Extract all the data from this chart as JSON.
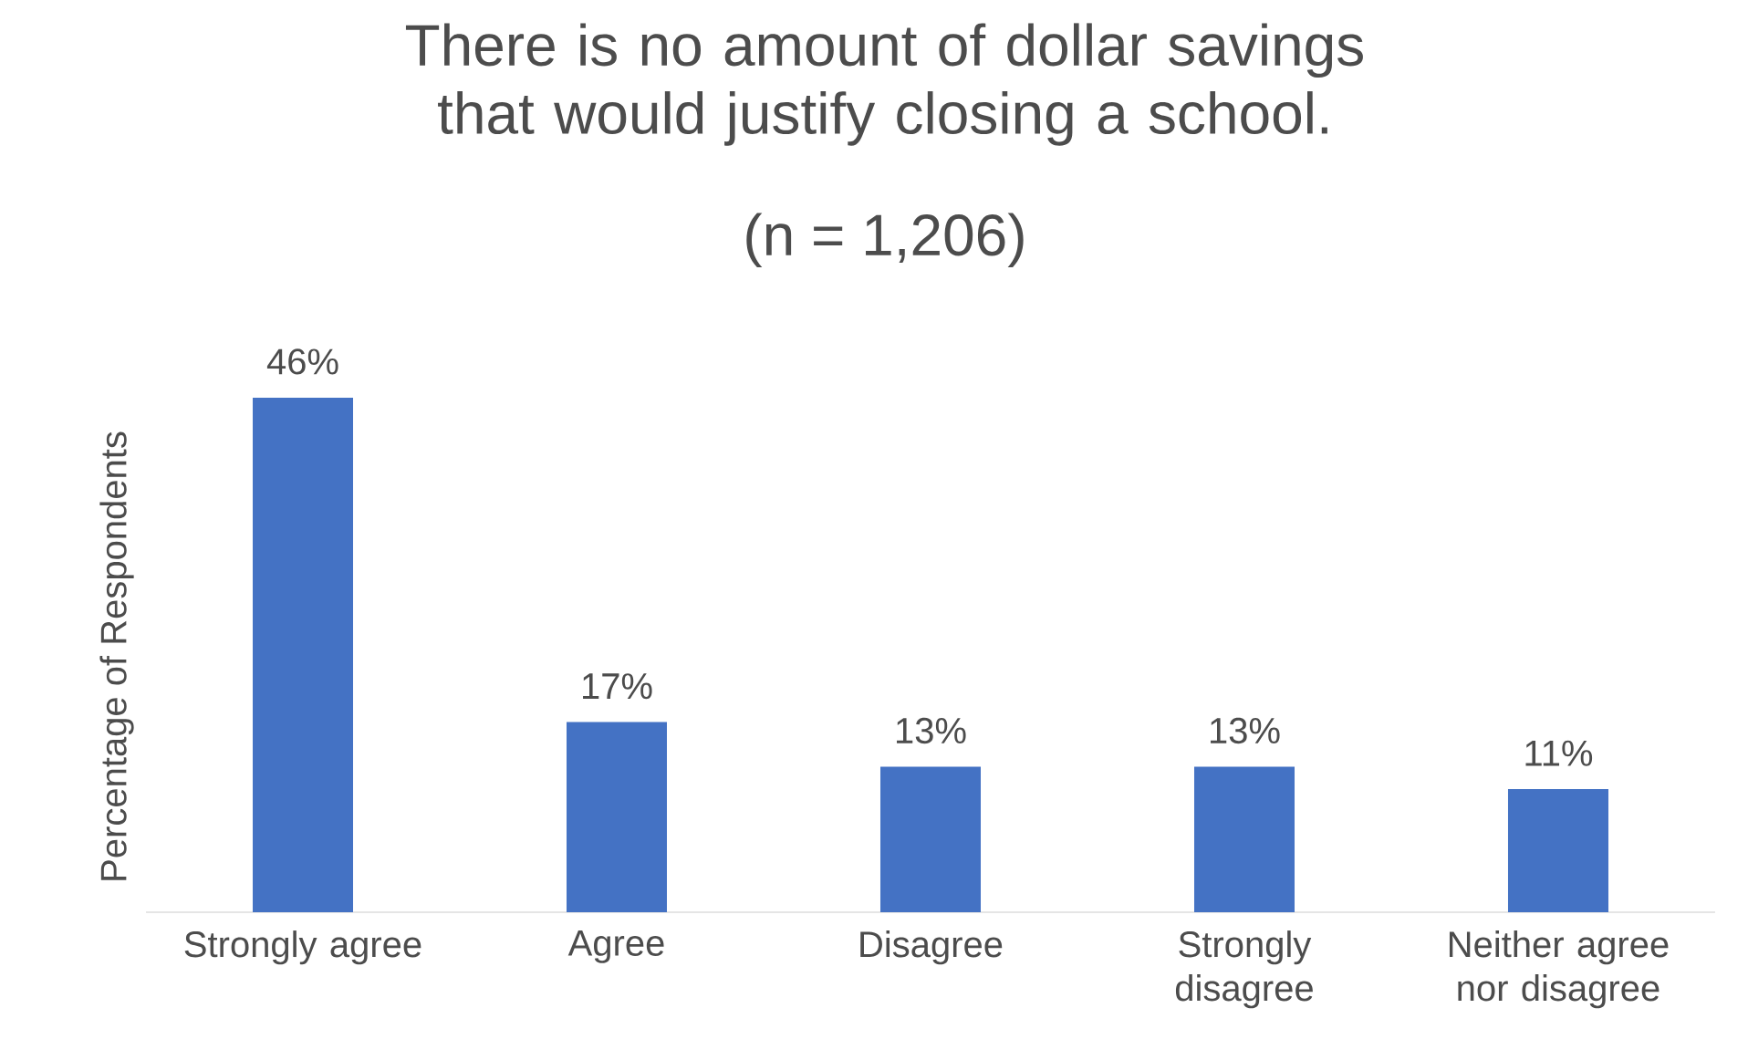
{
  "chart_data": {
    "type": "bar",
    "title": "There is no amount of dollar savings that would justify closing a school.",
    "subtitle": "(n = 1,206)",
    "ylabel": "Percentage of Respondents",
    "categories": [
      "Strongly agree",
      "Agree",
      "Disagree",
      "Strongly disagree",
      "Neither agree nor disagree"
    ],
    "values": [
      46,
      17,
      13,
      13,
      11
    ],
    "value_labels": [
      "46%",
      "17%",
      "13%",
      "13%",
      "11%"
    ],
    "color": "#4472c4"
  }
}
